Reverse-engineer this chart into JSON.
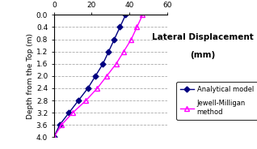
{
  "title_line1": "Lateral Displacement",
  "title_line2": "(mm)",
  "ylabel": "Depth from the Top (m)",
  "xlim": [
    0,
    60
  ],
  "ylim": [
    4,
    0
  ],
  "xticks": [
    0,
    20,
    40,
    60
  ],
  "yticks": [
    0,
    0.4,
    0.8,
    1.2,
    1.6,
    2.0,
    2.4,
    2.8,
    3.2,
    3.6,
    4.0
  ],
  "analytical_depth": [
    0,
    0.4,
    0.8,
    1.2,
    1.6,
    2.0,
    2.4,
    2.8,
    3.2,
    3.6,
    4.0
  ],
  "analytical_disp": [
    38,
    35,
    32,
    29,
    26,
    22,
    18,
    13,
    8,
    3,
    0
  ],
  "jewell_depth": [
    0,
    0.4,
    0.8,
    1.2,
    1.6,
    2.0,
    2.4,
    2.8,
    3.2,
    3.6,
    4.0
  ],
  "jewell_disp": [
    47,
    44,
    41,
    37,
    33,
    28,
    23,
    17,
    10,
    4,
    0
  ],
  "analytical_color": "#000080",
  "jewell_color": "#ff00ff",
  "analytical_label": "Analytical model",
  "jewell_label": "Jewell-Milligan\nmethod",
  "bg_color": "#ffffff",
  "grid_color": "#aaaaaa",
  "legend_fontsize": 6.0,
  "axis_fontsize": 6.5,
  "title_fontsize": 7.5
}
